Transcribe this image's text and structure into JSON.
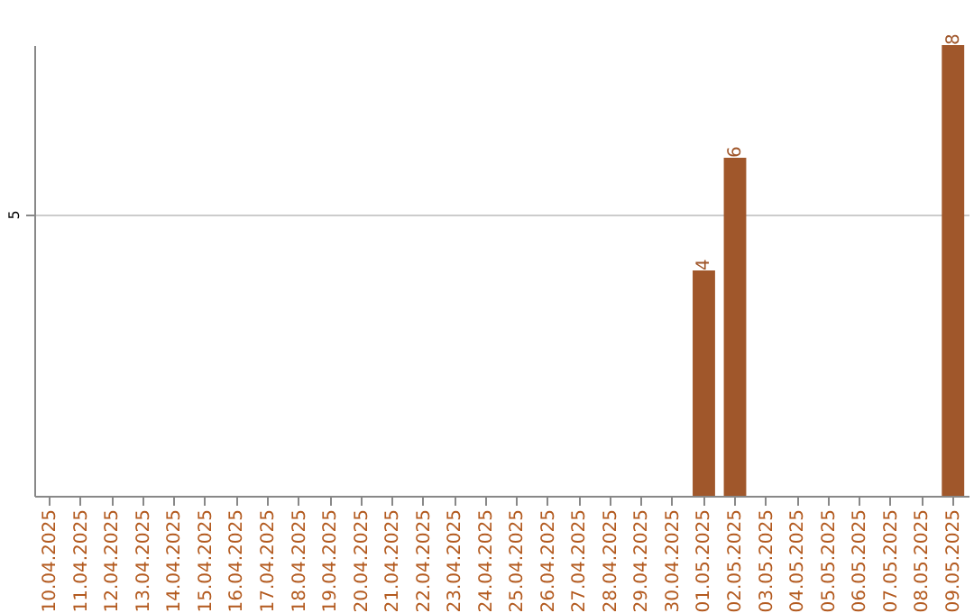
{
  "chart_data": {
    "type": "bar",
    "categories": [
      "10.04.2025",
      "11.04.2025",
      "12.04.2025",
      "13.04.2025",
      "14.04.2025",
      "15.04.2025",
      "16.04.2025",
      "17.04.2025",
      "18.04.2025",
      "19.04.2025",
      "20.04.2025",
      "21.04.2025",
      "22.04.2025",
      "23.04.2025",
      "24.04.2025",
      "25.04.2025",
      "26.04.2025",
      "27.04.2025",
      "28.04.2025",
      "29.04.2025",
      "30.04.2025",
      "01.05.2025",
      "02.05.2025",
      "03.05.2025",
      "04.05.2025",
      "05.05.2025",
      "06.05.2025",
      "07.05.2025",
      "08.05.2025",
      "09.05.2025"
    ],
    "values": [
      null,
      null,
      null,
      null,
      null,
      null,
      null,
      null,
      null,
      null,
      null,
      null,
      null,
      null,
      null,
      null,
      null,
      null,
      null,
      null,
      null,
      4,
      6,
      null,
      null,
      null,
      null,
      null,
      null,
      8
    ],
    "color": "#a0572b",
    "ylim": [
      0,
      8
    ],
    "yticks": [
      5
    ],
    "grid": "y",
    "data_labels": true
  }
}
